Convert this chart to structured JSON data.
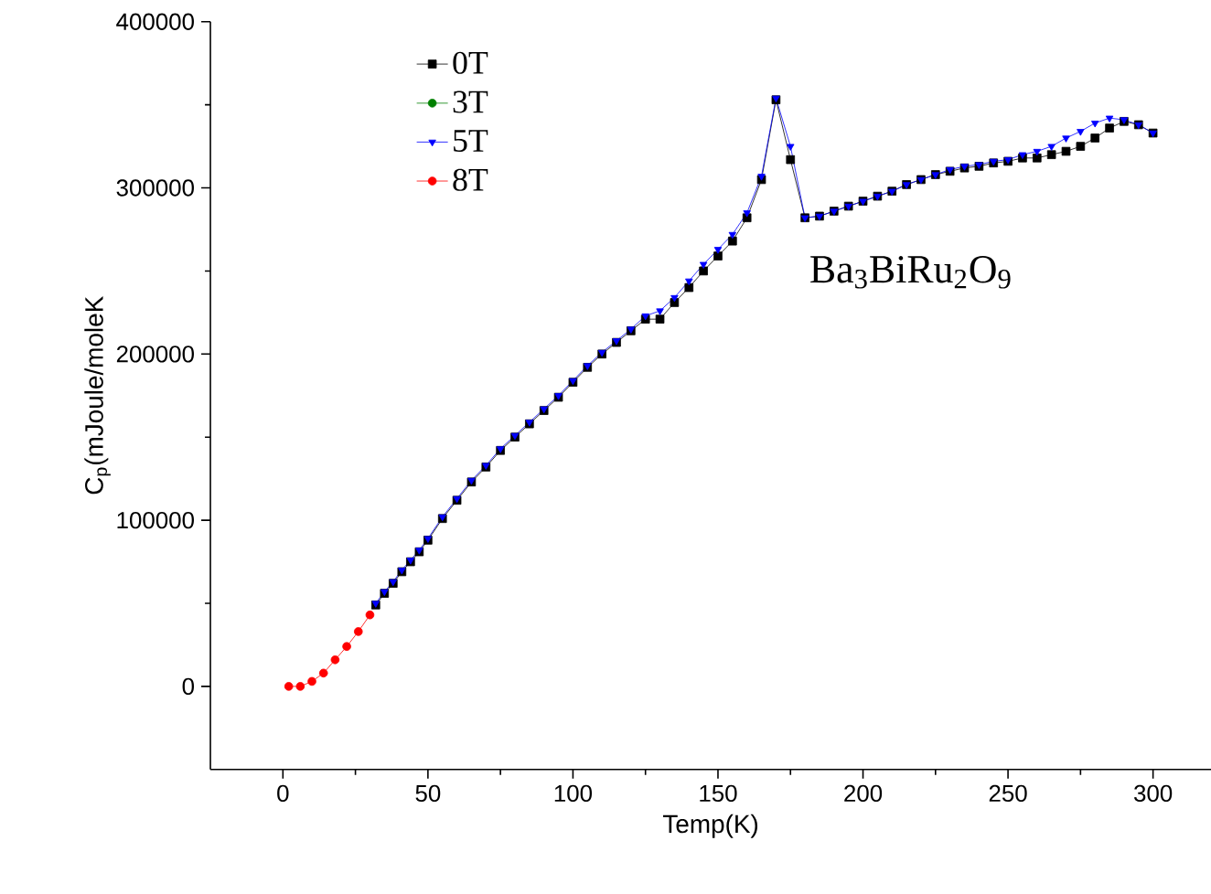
{
  "chart_data": {
    "type": "line",
    "xlabel": "Temp(K)",
    "ylabel": "C$_{p}$(mJoule/moleK",
    "annotations": [
      "Ba$_{3}$BiRu$_{2}$O$_{9}$"
    ],
    "xlim": [
      -25,
      320
    ],
    "ylim": [
      -50000,
      400000
    ],
    "xticks": [
      0,
      50,
      100,
      150,
      200,
      250,
      300
    ],
    "yticks": [
      0,
      100000,
      200000,
      300000,
      400000
    ],
    "legend": "top left",
    "grid": false,
    "line_style": "solid",
    "series": [
      {
        "name": "0T",
        "color": "#000000",
        "marker": "square",
        "x": [
          32,
          35,
          38,
          41,
          44,
          47,
          50,
          55,
          60,
          65,
          70,
          75,
          80,
          85,
          90,
          95,
          100,
          105,
          110,
          115,
          120,
          125,
          130,
          135,
          140,
          145,
          150,
          155,
          160,
          165,
          170,
          175,
          180,
          185,
          190,
          195,
          200,
          205,
          210,
          215,
          220,
          225,
          230,
          235,
          240,
          245,
          250,
          255,
          260,
          265,
          270,
          275,
          280,
          285,
          290,
          295,
          300
        ],
        "values": [
          49000,
          56000,
          62000,
          69000,
          75000,
          81000,
          88000,
          101000,
          112000,
          123000,
          132000,
          142000,
          150000,
          158000,
          166000,
          174000,
          183000,
          192000,
          200000,
          207000,
          214000,
          221000,
          221000,
          231000,
          240000,
          250000,
          259000,
          268000,
          282000,
          305000,
          353000,
          317000,
          282000,
          283000,
          286000,
          289000,
          292000,
          295000,
          298000,
          302000,
          305000,
          308000,
          310000,
          312000,
          313000,
          315000,
          316000,
          318000,
          318000,
          320000,
          322000,
          325000,
          330000,
          336000,
          340000,
          338000,
          333000
        ]
      },
      {
        "name": "3T",
        "color": "#008000",
        "marker": "circle"
      },
      {
        "name": "5T",
        "color": "#0000ff",
        "marker": "triangle",
        "x": [
          32,
          35,
          38,
          41,
          44,
          47,
          50,
          55,
          60,
          65,
          70,
          75,
          80,
          85,
          90,
          95,
          100,
          105,
          110,
          115,
          120,
          125,
          130,
          135,
          140,
          145,
          150,
          155,
          160,
          165,
          170,
          175,
          180,
          185,
          190,
          195,
          200,
          205,
          210,
          215,
          220,
          225,
          230,
          235,
          240,
          245,
          250,
          255,
          260,
          265,
          270,
          275,
          280,
          285,
          290,
          295,
          300
        ],
        "values": [
          50000,
          57000,
          63000,
          70000,
          76000,
          82000,
          89000,
          102000,
          113000,
          124000,
          133000,
          143000,
          151000,
          159000,
          167000,
          175000,
          184000,
          193000,
          201000,
          208000,
          215000,
          223000,
          226000,
          234000,
          244000,
          254000,
          263000,
          272000,
          285000,
          307000,
          354000,
          325000,
          282000,
          283000,
          286000,
          289000,
          292000,
          295000,
          298000,
          302000,
          305000,
          308000,
          311000,
          313000,
          314000,
          316000,
          317000,
          320000,
          322000,
          325000,
          330000,
          334000,
          339000,
          342000,
          341000,
          338000,
          333000
        ]
      },
      {
        "name": "8T",
        "color": "#ff0000",
        "marker": "circle",
        "x": [
          2,
          6,
          10,
          14,
          18,
          22,
          26,
          30
        ],
        "values": [
          0,
          0,
          3000,
          8000,
          16000,
          24000,
          33000,
          43000
        ]
      }
    ]
  }
}
